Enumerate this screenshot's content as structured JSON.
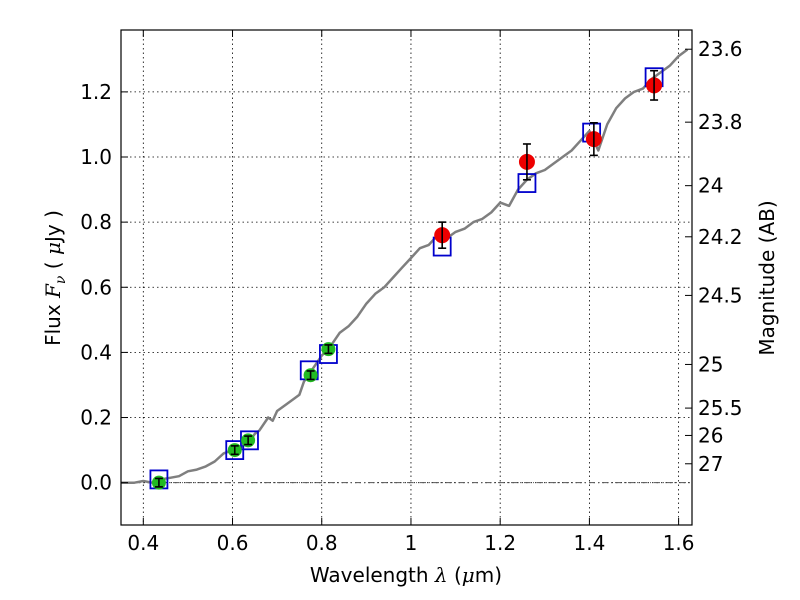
{
  "chart_data": {
    "type": "line",
    "title": "",
    "xlabel": "Wavelength λ (μm)",
    "ylabel": "Flux F_ν (μJy)",
    "ylabel_right": "Magnitude (AB)",
    "labels": {
      "x_prefix": "Wavelength ",
      "x_symbol": "λ",
      "x_unit_open": " (",
      "x_unit_mu": "μ",
      "x_unit_rest": "m)",
      "y_prefix": "Flux  ",
      "y_symbol": "F",
      "y_sub": "ν",
      "y_unit_open": "  ( ",
      "y_unit_mu": "μ",
      "y_unit_rest": "Jy )",
      "right": "Magnitude (AB)"
    },
    "xlim": [
      0.35,
      1.63
    ],
    "ylim": [
      -0.13,
      1.39
    ],
    "grid": true,
    "x_ticks": [
      {
        "v": 0.4,
        "label": "0.4"
      },
      {
        "v": 0.6,
        "label": "0.6"
      },
      {
        "v": 0.8,
        "label": "0.8"
      },
      {
        "v": 1.0,
        "label": "1"
      },
      {
        "v": 1.2,
        "label": "1.2"
      },
      {
        "v": 1.4,
        "label": "1.4"
      },
      {
        "v": 1.6,
        "label": "1.6"
      }
    ],
    "y_ticks": [
      {
        "v": 0.0,
        "label": "0.0"
      },
      {
        "v": 0.2,
        "label": "0.2"
      },
      {
        "v": 0.4,
        "label": "0.4"
      },
      {
        "v": 0.6,
        "label": "0.6"
      },
      {
        "v": 0.8,
        "label": "0.8"
      },
      {
        "v": 1.0,
        "label": "1.0"
      },
      {
        "v": 1.2,
        "label": "1.2"
      }
    ],
    "mag_ticks": [
      {
        "flux": 1.331,
        "label": "23.6"
      },
      {
        "flux": 1.107,
        "label": "23.8"
      },
      {
        "flux": 0.912,
        "label": "24"
      },
      {
        "flux": 0.755,
        "label": "24.2"
      },
      {
        "flux": 0.575,
        "label": "24.5"
      },
      {
        "flux": 0.363,
        "label": "25"
      },
      {
        "flux": 0.229,
        "label": "25.5"
      },
      {
        "flux": 0.145,
        "label": "26"
      },
      {
        "flux": 0.058,
        "label": "27"
      }
    ],
    "colors": {
      "model": "#7f7f7f",
      "green": "#22bb22",
      "red": "#ee0000",
      "box": "#0000cc",
      "errorbar": "#000000",
      "grid": "#000000",
      "zero_line": "#555555"
    },
    "series": [
      {
        "kind": "model-spectrum",
        "x": [
          0.35,
          0.38,
          0.4,
          0.42,
          0.44,
          0.46,
          0.48,
          0.5,
          0.52,
          0.54,
          0.56,
          0.58,
          0.6,
          0.62,
          0.64,
          0.65,
          0.66,
          0.68,
          0.69,
          0.7,
          0.72,
          0.74,
          0.75,
          0.76,
          0.78,
          0.8,
          0.82,
          0.84,
          0.86,
          0.88,
          0.9,
          0.92,
          0.94,
          0.96,
          0.98,
          1.0,
          1.02,
          1.04,
          1.06,
          1.08,
          1.1,
          1.12,
          1.14,
          1.16,
          1.18,
          1.2,
          1.22,
          1.24,
          1.26,
          1.28,
          1.3,
          1.32,
          1.34,
          1.36,
          1.38,
          1.4,
          1.42,
          1.44,
          1.46,
          1.48,
          1.5,
          1.52,
          1.54,
          1.56,
          1.58,
          1.6,
          1.62
        ],
        "y": [
          0.0,
          0.0,
          0.005,
          0.0,
          0.01,
          0.015,
          0.02,
          0.035,
          0.04,
          0.05,
          0.065,
          0.09,
          0.1,
          0.11,
          0.13,
          0.15,
          0.16,
          0.2,
          0.19,
          0.22,
          0.24,
          0.26,
          0.27,
          0.31,
          0.35,
          0.39,
          0.42,
          0.46,
          0.48,
          0.51,
          0.55,
          0.58,
          0.6,
          0.63,
          0.66,
          0.69,
          0.72,
          0.73,
          0.76,
          0.75,
          0.77,
          0.78,
          0.8,
          0.81,
          0.83,
          0.86,
          0.85,
          0.9,
          0.93,
          0.95,
          0.96,
          0.98,
          1.0,
          1.02,
          1.05,
          1.08,
          1.02,
          1.1,
          1.15,
          1.18,
          1.2,
          1.21,
          1.24,
          1.26,
          1.28,
          1.31,
          1.33
        ]
      },
      {
        "kind": "green-photometry",
        "points": [
          {
            "x": 0.435,
            "y": 0.0,
            "err": 0.013
          },
          {
            "x": 0.605,
            "y": 0.1,
            "err": 0.013
          },
          {
            "x": 0.635,
            "y": 0.13,
            "err": 0.013
          },
          {
            "x": 0.775,
            "y": 0.33,
            "err": 0.013
          },
          {
            "x": 0.815,
            "y": 0.41,
            "err": 0.013
          }
        ]
      },
      {
        "kind": "red-photometry",
        "points": [
          {
            "x": 1.07,
            "y": 0.76,
            "err": 0.04
          },
          {
            "x": 1.26,
            "y": 0.985,
            "err": 0.055
          },
          {
            "x": 1.41,
            "y": 1.055,
            "err": 0.05
          },
          {
            "x": 1.545,
            "y": 1.22,
            "err": 0.045
          }
        ]
      },
      {
        "kind": "model-boxes",
        "points": [
          {
            "x": 0.435,
            "y": 0.01
          },
          {
            "x": 0.605,
            "y": 0.1
          },
          {
            "x": 0.638,
            "y": 0.13
          },
          {
            "x": 0.772,
            "y": 0.345
          },
          {
            "x": 0.815,
            "y": 0.395
          },
          {
            "x": 1.07,
            "y": 0.725
          },
          {
            "x": 1.26,
            "y": 0.92
          },
          {
            "x": 1.405,
            "y": 1.075
          },
          {
            "x": 1.545,
            "y": 1.245
          }
        ]
      }
    ]
  }
}
